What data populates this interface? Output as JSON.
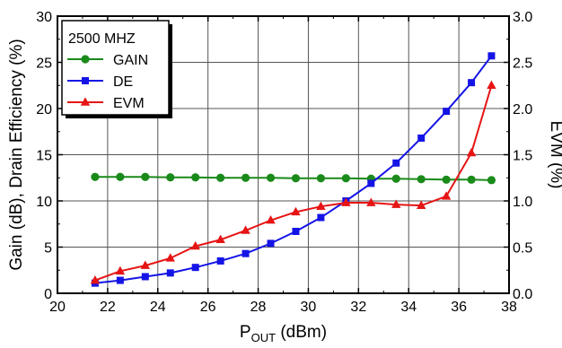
{
  "chart_data": {
    "type": "line",
    "title": "",
    "xlabel": {
      "main": "P",
      "sub": "OUT",
      "unit": " (dBm)"
    },
    "ylabel": "Gain (dB), Drain Efficiency (%)",
    "y2label": "EVM (%)",
    "xlim": [
      20,
      38
    ],
    "ylim": [
      0,
      30
    ],
    "y2lim": [
      0,
      3.0
    ],
    "xticks": [
      "20",
      "22",
      "24",
      "26",
      "28",
      "30",
      "32",
      "34",
      "36",
      "38"
    ],
    "yticks": [
      "0",
      "5",
      "10",
      "15",
      "20",
      "25",
      "30"
    ],
    "y2ticks": [
      "0.0",
      "0.5",
      "1.0",
      "1.5",
      "2.0",
      "2.5",
      "3.0"
    ],
    "grid": true,
    "legend": {
      "title": "2500  MHZ",
      "position": "top-left"
    },
    "series": [
      {
        "name": "GAIN",
        "axis": "left",
        "color": "#1a8a1a",
        "marker": "circle",
        "x": [
          21.5,
          22.5,
          23.5,
          24.5,
          25.5,
          26.5,
          27.5,
          28.5,
          29.5,
          30.5,
          31.5,
          32.5,
          33.5,
          34.5,
          35.5,
          36.5,
          37.3
        ],
        "y": [
          12.6,
          12.6,
          12.6,
          12.55,
          12.55,
          12.5,
          12.5,
          12.5,
          12.45,
          12.45,
          12.45,
          12.4,
          12.4,
          12.35,
          12.3,
          12.3,
          12.25
        ]
      },
      {
        "name": "DE",
        "axis": "left",
        "color": "#1414e6",
        "marker": "square",
        "x": [
          21.5,
          22.5,
          23.5,
          24.5,
          25.5,
          26.5,
          27.5,
          28.5,
          29.5,
          30.5,
          31.5,
          32.5,
          33.5,
          34.5,
          35.5,
          36.5,
          37.3
        ],
        "y": [
          1.1,
          1.4,
          1.8,
          2.2,
          2.8,
          3.5,
          4.3,
          5.4,
          6.7,
          8.2,
          10.0,
          11.9,
          14.1,
          16.8,
          19.7,
          22.8,
          25.7
        ]
      },
      {
        "name": "EVM",
        "axis": "right",
        "color": "#e61414",
        "marker": "triangle",
        "x": [
          21.5,
          22.5,
          23.5,
          24.5,
          25.5,
          26.5,
          27.5,
          28.5,
          29.5,
          30.5,
          31.5,
          32.5,
          33.5,
          34.5,
          35.5,
          36.5,
          37.3
        ],
        "y": [
          0.14,
          0.24,
          0.3,
          0.38,
          0.51,
          0.58,
          0.68,
          0.79,
          0.88,
          0.94,
          0.98,
          0.98,
          0.96,
          0.95,
          1.05,
          1.52,
          2.25
        ]
      }
    ]
  }
}
